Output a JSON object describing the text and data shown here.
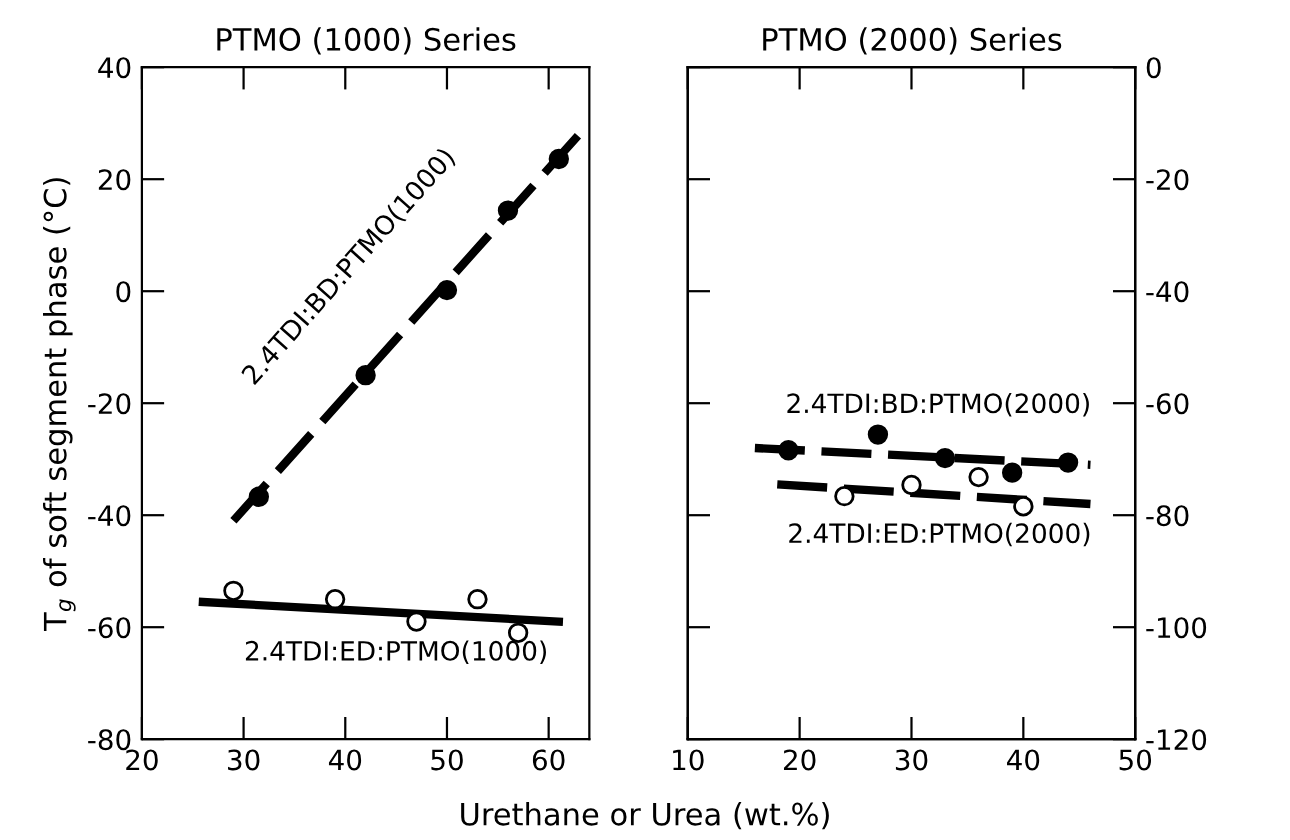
{
  "chart_data": [
    {
      "type": "scatter",
      "title": "PTMO (1000) Series",
      "xlabel": "Urethane or Urea (wt.%)",
      "ylabel": "T$_{g}$ of soft segment phase (°C)",
      "xlim": [
        20,
        64
      ],
      "xticks": [
        20,
        30,
        40,
        50,
        60
      ],
      "ylim": [
        -80,
        40
      ],
      "yticks": [
        -80,
        -60,
        -40,
        -20,
        0,
        20,
        40
      ],
      "grid": false,
      "legend": false,
      "series": [
        {
          "name": "2.4TDI:BD:PTMO(1000)",
          "color": "#000000",
          "marker": "circle",
          "x": [
            31.5,
            42,
            50,
            56,
            61
          ],
          "values": [
            -36.7,
            -15,
            0.2,
            14.4,
            23.6
          ]
        },
        {
          "name": "2.4TDI:ED:PTMO(1000)",
          "color": "#ffffff",
          "marker": "circle",
          "x": [
            29,
            39,
            47,
            53,
            57
          ],
          "values": [
            -53.5,
            -55,
            -59,
            -55,
            -61
          ]
        },
        {
          "type": "line",
          "color": "#000000",
          "line_style": "dashed",
          "marker": "none",
          "x": [
            29,
            63
          ],
          "values": [
            -41,
            28
          ]
        },
        {
          "type": "line",
          "color": "#000000",
          "line_style": "solid",
          "marker": "none",
          "x": [
            26,
            61
          ],
          "values": [
            -55.5,
            -59
          ]
        }
      ]
    },
    {
      "type": "scatter",
      "title": "PTMO (2000) Series",
      "xlim": [
        10,
        50
      ],
      "xticks": [
        10,
        20,
        30,
        40,
        50
      ],
      "y2lim": [
        -120,
        0
      ],
      "y2ticks": [
        -120,
        -100,
        -80,
        -60,
        -40,
        -20,
        0
      ],
      "grid": false,
      "legend": false,
      "series": [
        {
          "name": "2.4TDI:BD:PTMO(2000)",
          "axis": "y2",
          "color": "#000000",
          "marker": "circle",
          "x": [
            19,
            27,
            33,
            39,
            44
          ],
          "values": [
            -68.4,
            -65.6,
            -69.8,
            -72.4,
            -70.6
          ]
        },
        {
          "name": "2.4TDI:ED:PTMO(2000)",
          "axis": "y2",
          "color": "#ffffff",
          "marker": "circle",
          "x": [
            24,
            30,
            36,
            40
          ],
          "values": [
            -76.6,
            -74.6,
            -73.2,
            -78.4
          ]
        },
        {
          "type": "line",
          "axis": "y2",
          "color": "#000000",
          "line_style": "dashed",
          "marker": "none",
          "x": [
            16,
            46
          ],
          "values": [
            -68,
            -71
          ]
        },
        {
          "type": "line",
          "axis": "y2",
          "color": "#000000",
          "line_style": "dashed",
          "marker": "none",
          "x": [
            18,
            46
          ],
          "values": [
            -74.5,
            -78
          ]
        }
      ]
    }
  ]
}
